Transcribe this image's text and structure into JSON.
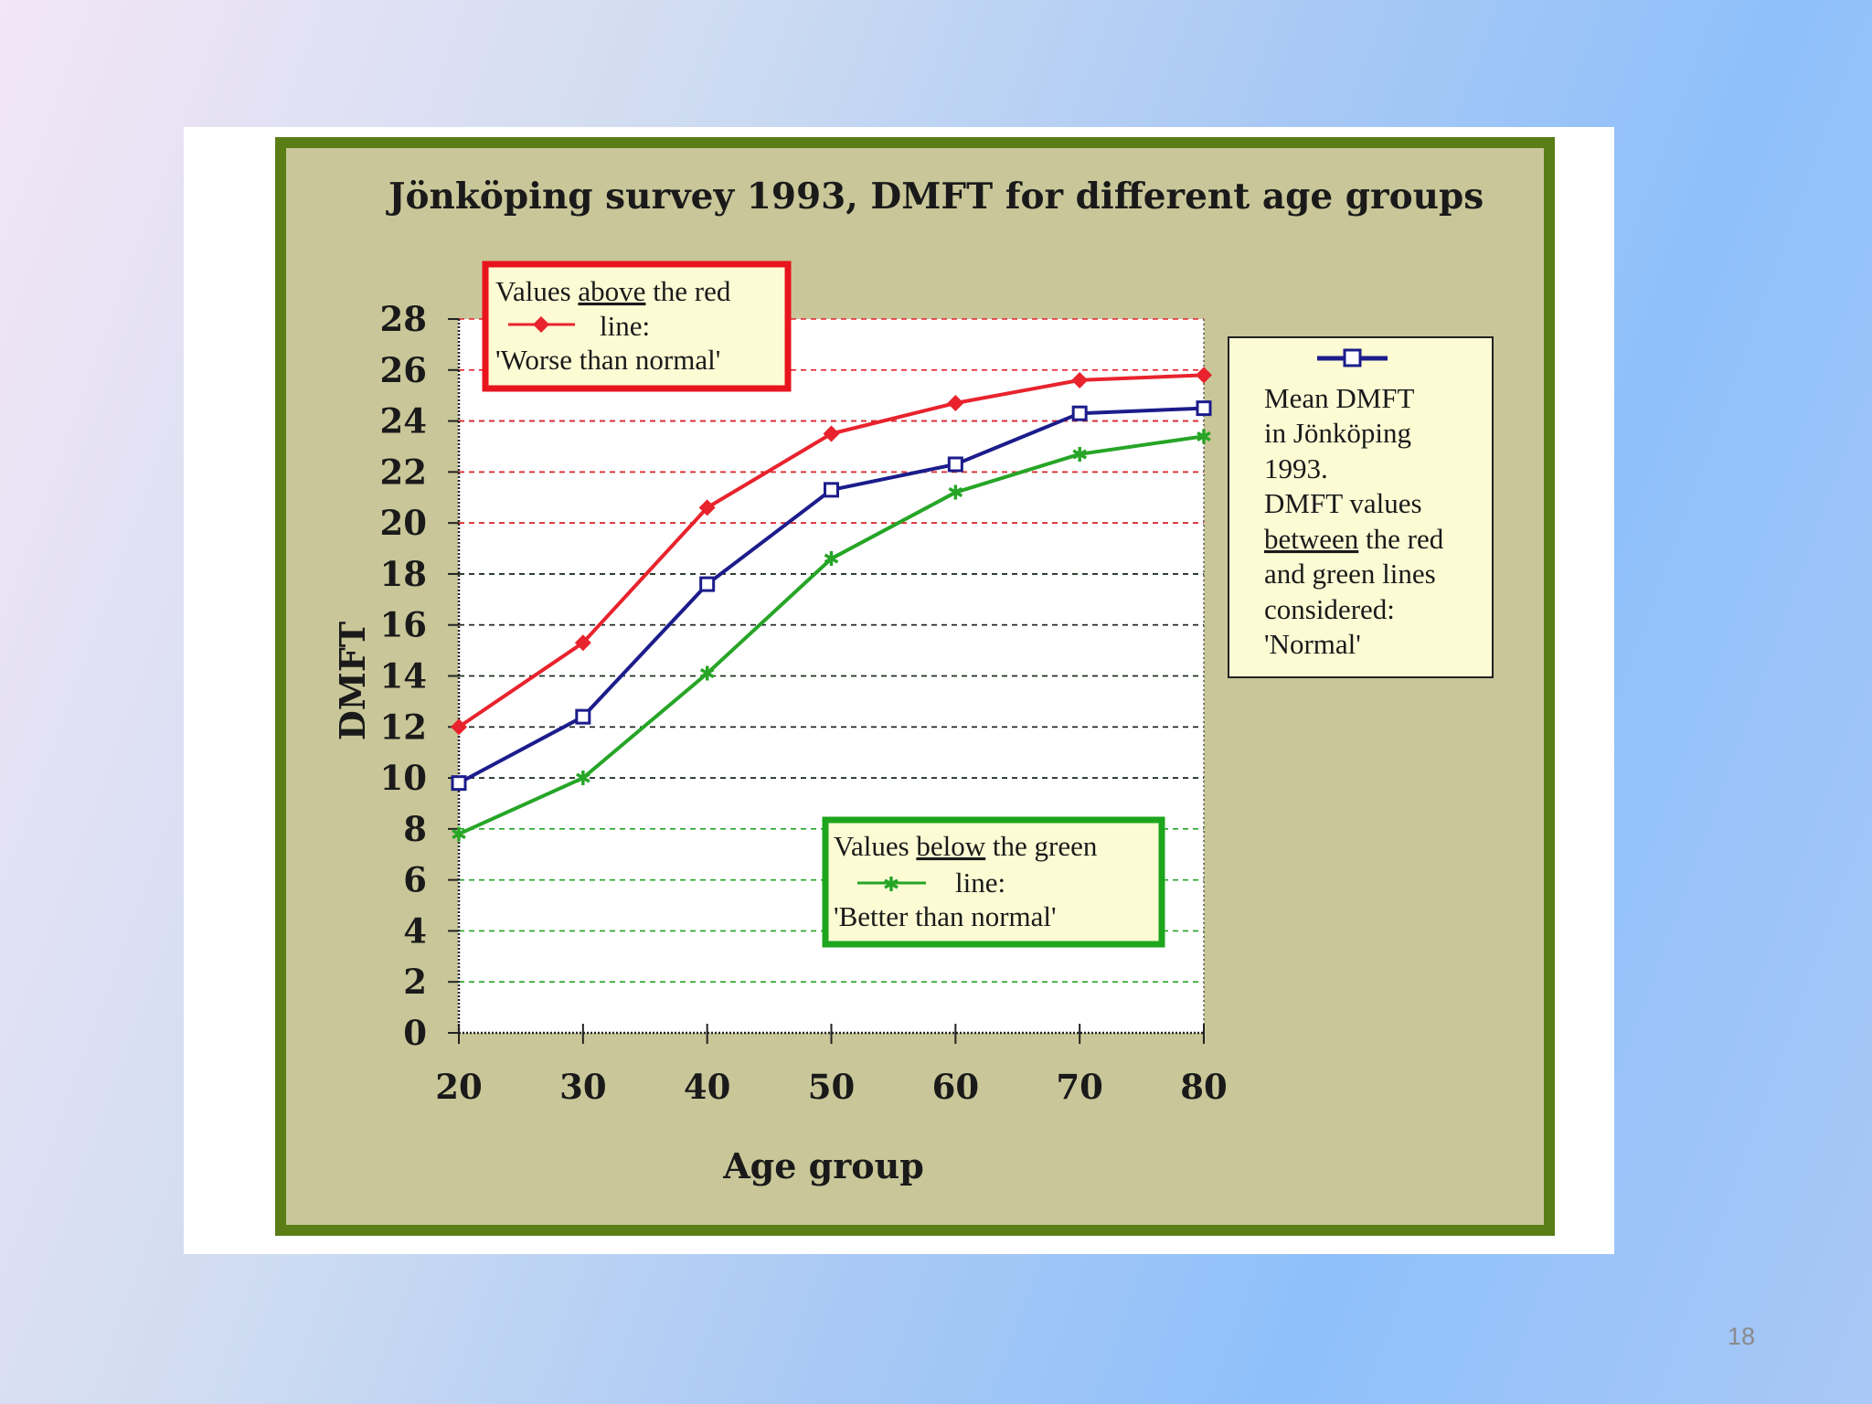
{
  "slide_number": "18",
  "colors": {
    "outer_background": "#c9c799",
    "frame_border": "#5a7d16",
    "plot_background": "#ffffff",
    "worse_line": "#e8232d",
    "mean_line": "#1c1c8c",
    "better_line": "#26a526",
    "upper_box_border": "#e8141e",
    "lower_box_border": "#1ea51e",
    "note_background": "#fcfbd4"
  },
  "chart_data": {
    "type": "line",
    "title": "Jönköping survey 1993, DMFT for different age groups",
    "xlabel": "Age group",
    "ylabel": "DMFT",
    "x": [
      20,
      30,
      40,
      50,
      60,
      70,
      80
    ],
    "xlim": [
      20,
      80
    ],
    "ylim": [
      0,
      28
    ],
    "yticks": [
      0,
      2,
      4,
      6,
      8,
      10,
      12,
      14,
      16,
      18,
      20,
      22,
      24,
      26,
      28
    ],
    "xticks": [
      20,
      30,
      40,
      50,
      60,
      70,
      80
    ],
    "series": [
      {
        "name": "Worse than normal boundary",
        "marker": "diamond",
        "values": [
          12.0,
          15.3,
          20.6,
          23.5,
          24.7,
          25.6,
          25.8
        ]
      },
      {
        "name": "Mean DMFT in Jönköping 1993",
        "marker": "square",
        "values": [
          9.8,
          12.4,
          17.6,
          21.3,
          22.3,
          24.3,
          24.5
        ]
      },
      {
        "name": "Better than normal boundary",
        "marker": "star",
        "values": [
          7.8,
          10.0,
          14.1,
          18.6,
          21.2,
          22.7,
          23.4
        ]
      }
    ],
    "gridlines": {
      "red": [
        20,
        22,
        24,
        26,
        28
      ],
      "black": [
        10,
        12,
        14,
        16,
        18,
        20,
        22,
        24
      ],
      "green": [
        2,
        4,
        6,
        8,
        10,
        12,
        14,
        16,
        18,
        20,
        22
      ]
    },
    "annotations": {
      "upper_box": {
        "line1_pre": "Values ",
        "line1_underlined": "above",
        "line1_post": " the red",
        "line2": "line:",
        "line3": "'Worse than normal'"
      },
      "lower_box": {
        "line1_pre": "Values ",
        "line1_underlined": "below",
        "line1_post": " the green",
        "line2": "line:",
        "line3": "'Better than normal'"
      },
      "mean_note": {
        "lines": [
          "Mean DMFT",
          "in Jönköping",
          "1993.",
          "DMFT values"
        ],
        "underlined_word": "between",
        "line_after_underlined": " the red",
        "tail_lines": [
          "and green lines",
          "considered:",
          "'Normal'"
        ]
      }
    }
  }
}
